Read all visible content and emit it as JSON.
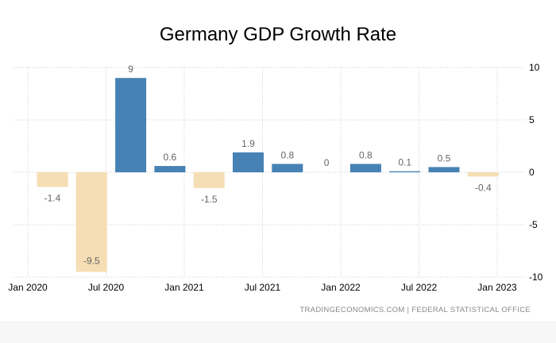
{
  "chart_data": {
    "type": "bar",
    "title": "Germany GDP Growth Rate",
    "xlabel": "",
    "ylabel": "",
    "ylim": [
      -10,
      10
    ],
    "yticks": [
      "10",
      "5",
      "0",
      "-5",
      "-10"
    ],
    "ytick_values": [
      10,
      5,
      0,
      -5,
      -10
    ],
    "xticks": [
      "Jan 2020",
      "Jul 2020",
      "Jan 2021",
      "Jul 2021",
      "Jan 2022",
      "Jul 2022",
      "Jan 2023"
    ],
    "categories": [
      "Q1 2020",
      "Q2 2020",
      "Q3 2020",
      "Q4 2020",
      "Q1 2021",
      "Q2 2021",
      "Q3 2021",
      "Q4 2021",
      "Q1 2022",
      "Q2 2022",
      "Q3 2022",
      "Q4 2022"
    ],
    "values": [
      -1.4,
      -9.5,
      9,
      0.6,
      -1.5,
      1.9,
      0.8,
      0,
      0.8,
      0.1,
      0.5,
      -0.4
    ],
    "value_labels": [
      "-1.4",
      "-9.5",
      "9",
      "0.6",
      "-1.5",
      "1.9",
      "0.8",
      "0",
      "0.8",
      "0.1",
      "0.5",
      "-0.4"
    ],
    "grid": true,
    "colors": {
      "positive": "#4682b4",
      "negative": "#f5deb3",
      "label": "#666666"
    }
  },
  "source": "TRADINGECONOMICS.COM  |  FEDERAL STATISTICAL OFFICE"
}
